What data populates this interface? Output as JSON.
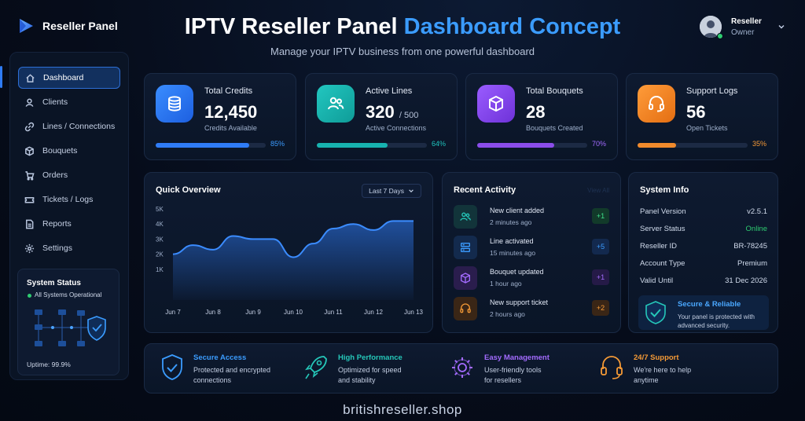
{
  "brand": {
    "label": "Reseller Panel"
  },
  "header": {
    "title_main": "IPTV Reseller Panel",
    "title_accent": "Dashboard Concept",
    "subtitle": "Manage your IPTV business from one powerful dashboard"
  },
  "user": {
    "name": "Reseller",
    "role": "Owner"
  },
  "sidebar": {
    "items": [
      {
        "label": "Dashboard",
        "icon": "home-icon"
      },
      {
        "label": "Clients",
        "icon": "user-icon"
      },
      {
        "label": "Lines / Connections",
        "icon": "link-icon"
      },
      {
        "label": "Bouquets",
        "icon": "cube-icon"
      },
      {
        "label": "Orders",
        "icon": "cart-icon"
      },
      {
        "label": "Tickets / Logs",
        "icon": "ticket-icon"
      },
      {
        "label": "Reports",
        "icon": "report-icon"
      },
      {
        "label": "Settings",
        "icon": "gear-icon"
      }
    ],
    "system_status": {
      "title": "System Status",
      "status": "All Systems Operational",
      "uptime": "Uptime: 99.9%"
    }
  },
  "stats": [
    {
      "title": "Total Credits",
      "value": "12,450",
      "of": "",
      "sub": "Credits Available",
      "pct_label": "85%",
      "progress": 0.85,
      "color": "#2f7cf6"
    },
    {
      "title": "Active Lines",
      "value": "320",
      "of": "/ 500",
      "sub": "Active Connections",
      "pct_label": "64%",
      "progress": 0.64,
      "color": "#17b3b0"
    },
    {
      "title": "Total Bouquets",
      "value": "28",
      "of": "",
      "sub": "Bouquets Created",
      "pct_label": "70%",
      "progress": 0.7,
      "color": "#8b4dea"
    },
    {
      "title": "Support Logs",
      "value": "56",
      "of": "",
      "sub": "Open Tickets",
      "pct_label": "35%",
      "progress": 0.35,
      "color": "#f08a2c"
    }
  ],
  "overview": {
    "title": "Quick Overview",
    "range": "Last 7 Days"
  },
  "chart_data": {
    "type": "area",
    "categories": [
      "Jun 7",
      "Jun 8",
      "Jun 9",
      "Jun 10",
      "Jun 11",
      "Jun 12",
      "Jun 13"
    ],
    "y_ticks": [
      "5K",
      "4K",
      "3K",
      "2K",
      "1K"
    ],
    "ylim": [
      0,
      5000
    ],
    "x": [
      7,
      7.5,
      8,
      8.5,
      9,
      9.5,
      10,
      10.5,
      11,
      11.5,
      12,
      12.5,
      13
    ],
    "values": [
      2000,
      2600,
      2300,
      3200,
      3000,
      3000,
      1800,
      2700,
      3700,
      4000,
      3600,
      4200,
      4200
    ],
    "grid": false,
    "title": "",
    "xlabel": "",
    "ylabel": ""
  },
  "activity": {
    "title": "Recent Activity",
    "view_all": "View All",
    "items": [
      {
        "title": "New client added",
        "time": "2 minutes ago",
        "badge": "+1",
        "color": "#1fb39a"
      },
      {
        "title": "Line activated",
        "time": "15 minutes ago",
        "badge": "+5",
        "color": "#2f7cf6"
      },
      {
        "title": "Bouquet updated",
        "time": "1 hour ago",
        "badge": "+1",
        "color": "#8b4dea"
      },
      {
        "title": "New support ticket",
        "time": "2 hours ago",
        "badge": "+2",
        "color": "#f08a2c"
      }
    ]
  },
  "system_info": {
    "title": "System Info",
    "rows": [
      {
        "label": "Panel Version",
        "value": "v2.5.1"
      },
      {
        "label": "Server Status",
        "value": "Online"
      },
      {
        "label": "Reseller ID",
        "value": "BR-78245"
      },
      {
        "label": "Account Type",
        "value": "Premium"
      },
      {
        "label": "Valid Until",
        "value": "31 Dec 2026"
      }
    ],
    "secure_title": "Secure & Reliable",
    "secure_desc_1": "Your panel is protected with",
    "secure_desc_2": "advanced security."
  },
  "features": [
    {
      "title": "Secure Access",
      "desc1": "Protected and encrypted",
      "desc2": "connections",
      "color": "#3b9cff"
    },
    {
      "title": "High Performance",
      "desc1": "Optimized for speed",
      "desc2": "and stability",
      "color": "#25c7b9"
    },
    {
      "title": "Easy Management",
      "desc1": "User-friendly tools",
      "desc2": "for resellers",
      "color": "#a36bff"
    },
    {
      "title": "24/7 Support",
      "desc1": "We're here to help",
      "desc2": "anytime",
      "color": "#f59a36"
    }
  ],
  "footer": {
    "domain": "britishreseller.shop"
  },
  "colors": {
    "accent": "#3b9cff",
    "online": "#2ecc71"
  }
}
